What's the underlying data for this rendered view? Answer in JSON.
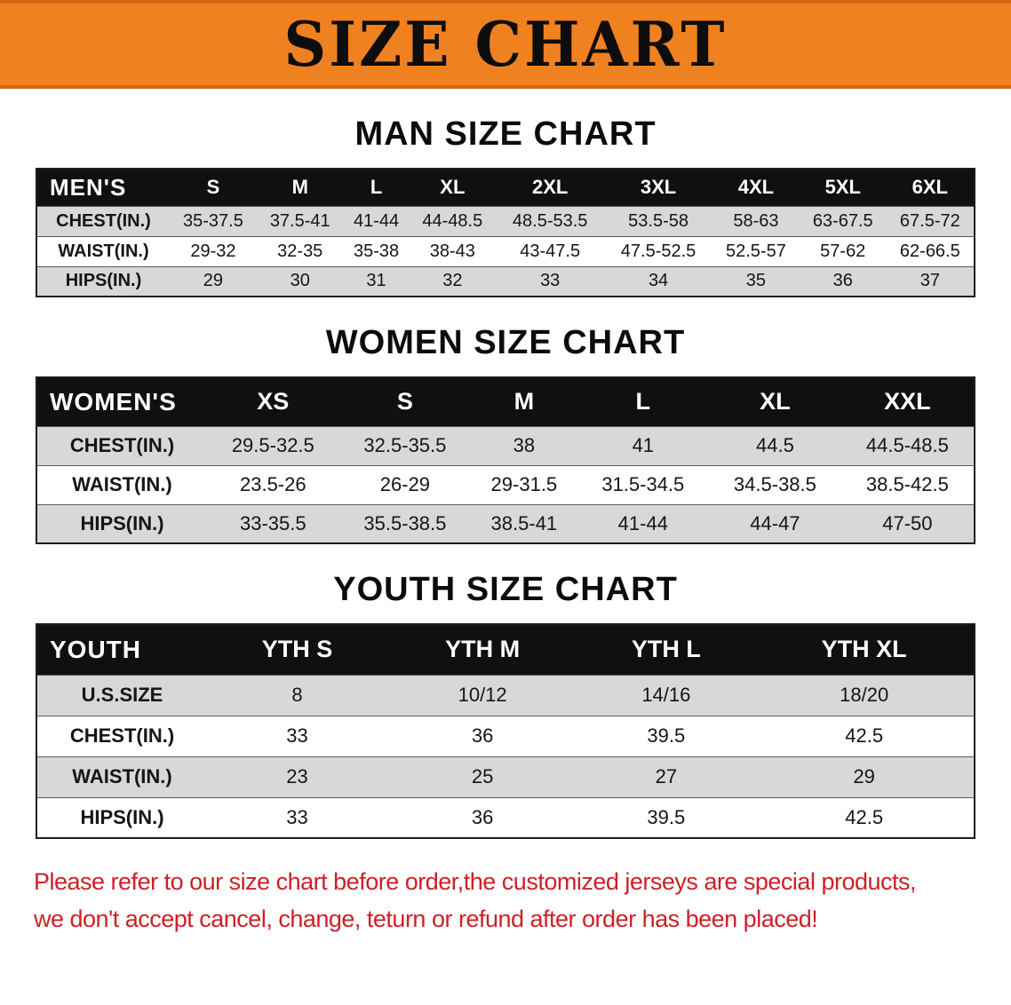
{
  "colors": {
    "banner-bg": "#f08121",
    "banner-text": "#0d0d0d",
    "table-header-bg": "#101010",
    "row-alt-bg": "#d8d8d8",
    "disclaimer-red": "#cd2027"
  },
  "banner": {
    "title": "SIZE CHART"
  },
  "sections": [
    {
      "heading": "MAN SIZE CHART",
      "table": {
        "header": [
          "MEN'S",
          "S",
          "M",
          "L",
          "XL",
          "2XL",
          "3XL",
          "4XL",
          "5XL",
          "6XL"
        ],
        "rows": [
          [
            "CHEST(IN.)",
            "35-37.5",
            "37.5-41",
            "41-44",
            "44-48.5",
            "48.5-53.5",
            "53.5-58",
            "58-63",
            "63-67.5",
            "67.5-72"
          ],
          [
            "WAIST(IN.)",
            "29-32",
            "32-35",
            "35-38",
            "38-43",
            "43-47.5",
            "47.5-52.5",
            "52.5-57",
            "57-62",
            "62-66.5"
          ],
          [
            "HIPS(IN.)",
            "29",
            "30",
            "31",
            "32",
            "33",
            "34",
            "35",
            "36",
            "37"
          ]
        ]
      }
    },
    {
      "heading": "WOMEN SIZE CHART",
      "table": {
        "header": [
          "WOMEN'S",
          "XS",
          "S",
          "M",
          "L",
          "XL",
          "XXL"
        ],
        "rows": [
          [
            "CHEST(IN.)",
            "29.5-32.5",
            "32.5-35.5",
            "38",
            "41",
            "44.5",
            "44.5-48.5"
          ],
          [
            "WAIST(IN.)",
            "23.5-26",
            "26-29",
            "29-31.5",
            "31.5-34.5",
            "34.5-38.5",
            "38.5-42.5"
          ],
          [
            "HIPS(IN.)",
            "33-35.5",
            "35.5-38.5",
            "38.5-41",
            "41-44",
            "44-47",
            "47-50"
          ]
        ]
      }
    },
    {
      "heading": "YOUTH SIZE CHART",
      "table": {
        "header": [
          "YOUTH",
          "YTH S",
          "YTH M",
          "YTH L",
          "YTH XL"
        ],
        "rows": [
          [
            "U.S.SIZE",
            "8",
            "10/12",
            "14/16",
            "18/20"
          ],
          [
            "CHEST(IN.)",
            "33",
            "36",
            "39.5",
            "42.5"
          ],
          [
            "WAIST(IN.)",
            "23",
            "25",
            "27",
            "29"
          ],
          [
            "HIPS(IN.)",
            "33",
            "36",
            "39.5",
            "42.5"
          ]
        ]
      }
    }
  ],
  "disclaimer": {
    "line1": "Please refer to our size chart before order,the customized jerseys are special products,",
    "line2": "we don't accept cancel, change, teturn or refund after order has been placed!"
  }
}
